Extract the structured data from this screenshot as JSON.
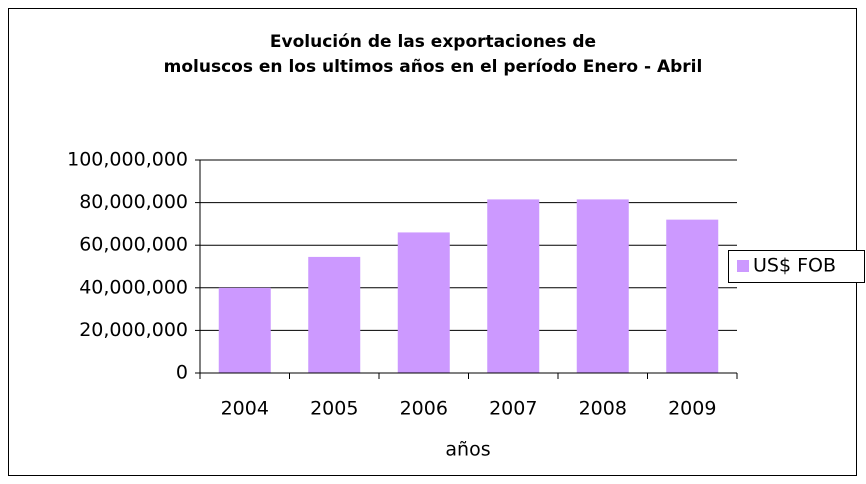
{
  "chart_data": {
    "type": "bar",
    "title": [
      "Evolución de las exportaciones de",
      "moluscos en los ultimos años en el período Enero - Abril"
    ],
    "x_label": "años",
    "categories": [
      "2004",
      "2005",
      "2006",
      "2007",
      "2008",
      "2009"
    ],
    "series": [
      {
        "name": "US$ FOB",
        "color": "#cc99ff",
        "values": [
          40000000,
          54500000,
          66000000,
          81500000,
          81500000,
          72000000
        ]
      }
    ],
    "ylim": [
      0,
      100000000
    ],
    "yticks": [
      0,
      {
        "value": 20000000,
        "label": "20,000,000"
      },
      {
        "value": 40000000,
        "label": "40,000,000"
      },
      {
        "value": 60000000,
        "label": "60,000,000"
      },
      {
        "value": 80000000,
        "label": "80,000,000"
      },
      {
        "value": 100000000,
        "label": "100,000,000"
      }
    ],
    "grid": true,
    "legend": "right"
  }
}
